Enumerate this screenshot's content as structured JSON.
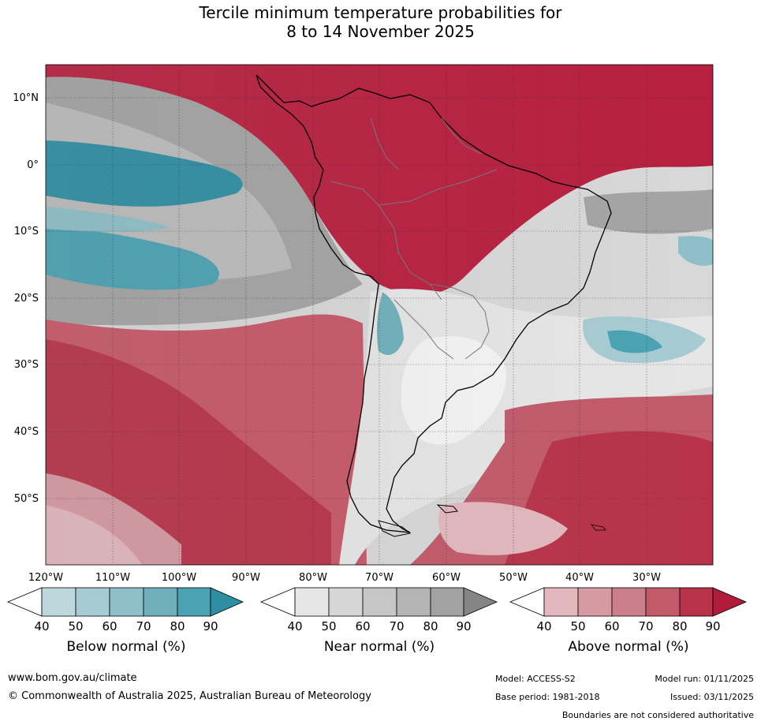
{
  "title": {
    "line1": "Tercile minimum temperature probabilities for",
    "line2": "8 to 14 November 2025"
  },
  "map": {
    "region": "South America and surrounding oceans",
    "lat_labels": [
      "10°N",
      "0°",
      "10°S",
      "20°S",
      "30°S",
      "40°S",
      "50°S"
    ],
    "lon_labels": [
      "120°W",
      "110°W",
      "100°W",
      "90°W",
      "80°W",
      "70°W",
      "60°W",
      "50°W",
      "40°W",
      "30°W"
    ]
  },
  "legend": {
    "ticks": [
      "40",
      "50",
      "60",
      "70",
      "80",
      "90"
    ],
    "below": {
      "label": "Below normal (%)",
      "colors": [
        "#ffffff",
        "#bdd7dd",
        "#a6cbd2",
        "#8ebfc8",
        "#6fb0bc",
        "#4aa2b3",
        "#2e8fa3"
      ]
    },
    "near": {
      "label": "Near normal (%)",
      "colors": [
        "#ffffff",
        "#e6e6e6",
        "#d6d6d6",
        "#c6c6c6",
        "#b4b4b4",
        "#a2a2a2",
        "#858585"
      ]
    },
    "above": {
      "label": "Above normal (%)",
      "colors": [
        "#ffffff",
        "#e2b8be",
        "#d69aa3",
        "#cc7f8a",
        "#c25a6a",
        "#b83349",
        "#b01c39"
      ]
    }
  },
  "footer": {
    "website": "www.bom.gov.au/climate",
    "copyright": "© Commonwealth of Australia 2025, Australian Bureau of Meteorology",
    "model": "Model: ACCESS-S2",
    "model_run": "Model run: 01/11/2025",
    "base_period": "Base period: 1981-2018",
    "issued": "Issued: 03/11/2025",
    "disclaimer": "Boundaries are not considered authoritative"
  }
}
